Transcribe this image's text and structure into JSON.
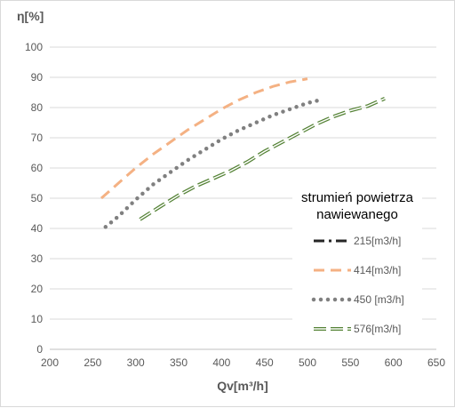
{
  "chart_data": {
    "type": "line",
    "xlabel": "Qv[m³/h]",
    "ylabel": "η[%]",
    "xlim": [
      200,
      650
    ],
    "ylim": [
      0,
      100
    ],
    "x_ticks": [
      "200",
      "250",
      "300",
      "350",
      "400",
      "450",
      "500",
      "550",
      "600",
      "650"
    ],
    "y_ticks": [
      "0",
      "10",
      "20",
      "30",
      "40",
      "50",
      "60",
      "70",
      "80",
      "90",
      "100"
    ],
    "grid": "horizontal",
    "legend": {
      "title_line1": "strumień powietrza",
      "title_line2": "nawiewanego",
      "placement": "right"
    },
    "series": [
      {
        "name": "215[m3/h]",
        "color": "#262626",
        "style": "dash-dot",
        "x": [],
        "y": []
      },
      {
        "name": "414[m3/h]",
        "color": "#f4b183",
        "style": "dash",
        "x": [
          260,
          280,
          300,
          320,
          340,
          360,
          380,
          400,
          420,
          440,
          460,
          480,
          500
        ],
        "y": [
          50,
          55,
          60,
          64.5,
          68.5,
          72.5,
          76,
          79.5,
          82.5,
          85,
          87,
          88.5,
          89.5
        ]
      },
      {
        "name": "450 [m3/h]",
        "color": "#808080",
        "style": "dot",
        "x": [
          265,
          280,
          300,
          320,
          340,
          360,
          380,
          400,
          420,
          440,
          460,
          480,
          500,
          515
        ],
        "y": [
          40.5,
          44,
          49.5,
          54.5,
          58.5,
          62.5,
          66,
          69.5,
          72.5,
          75,
          77.5,
          79.5,
          81.5,
          82.5
        ]
      },
      {
        "name": "576[m3/h]",
        "color": "#548235",
        "style": "double-dash",
        "x": [
          305,
          330,
          350,
          370,
          390,
          410,
          430,
          450,
          470,
          490,
          510,
          530,
          550,
          570,
          590
        ],
        "y": [
          43,
          47.5,
          51,
          54,
          56.5,
          59,
          62,
          65.5,
          68.5,
          71.5,
          74.5,
          77,
          79,
          80.5,
          83
        ]
      }
    ]
  }
}
